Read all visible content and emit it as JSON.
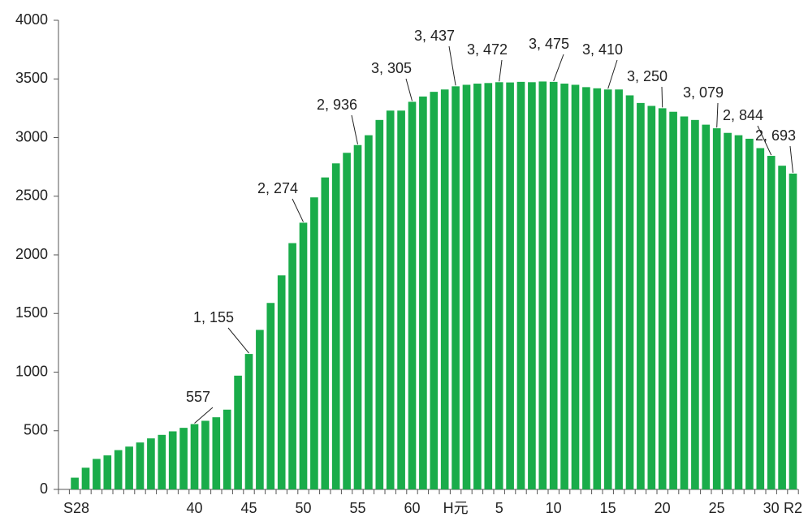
{
  "chart_data": {
    "type": "bar",
    "color": "#1aac4a",
    "categories": [
      "S28",
      null,
      null,
      null,
      null,
      null,
      null,
      null,
      null,
      null,
      null,
      null,
      "40",
      null,
      null,
      null,
      null,
      "45",
      null,
      null,
      null,
      null,
      "50",
      null,
      null,
      null,
      null,
      "55",
      null,
      null,
      null,
      null,
      "60",
      null,
      null,
      null,
      "H元",
      null,
      null,
      null,
      "5",
      null,
      null,
      null,
      null,
      "10",
      null,
      null,
      null,
      null,
      "15",
      null,
      null,
      null,
      null,
      "20",
      null,
      null,
      null,
      null,
      "25",
      null,
      null,
      null,
      null,
      "30",
      null,
      "R2"
    ],
    "values": [
      null,
      100,
      185,
      260,
      290,
      335,
      365,
      400,
      435,
      465,
      495,
      525,
      557,
      585,
      615,
      680,
      970,
      1155,
      1360,
      1590,
      1825,
      2100,
      2274,
      2490,
      2660,
      2780,
      2870,
      2936,
      3020,
      3150,
      3230,
      3230,
      3305,
      3350,
      3390,
      3410,
      3437,
      3450,
      3460,
      3465,
      3472,
      3470,
      3475,
      3472,
      3478,
      3475,
      3460,
      3450,
      3430,
      3420,
      3410,
      3410,
      3360,
      3295,
      3270,
      3250,
      3220,
      3180,
      3150,
      3110,
      3079,
      3040,
      3020,
      2990,
      2910,
      2844,
      2760,
      2693
    ],
    "value_labels": [
      null,
      null,
      null,
      null,
      null,
      null,
      null,
      null,
      null,
      null,
      null,
      null,
      "557",
      null,
      null,
      null,
      null,
      "1, 155",
      null,
      null,
      null,
      null,
      "2, 274",
      null,
      null,
      null,
      null,
      "2, 936",
      null,
      null,
      null,
      null,
      "3, 305",
      null,
      null,
      null,
      "3, 437",
      null,
      null,
      null,
      "3, 472",
      null,
      null,
      null,
      null,
      "3, 475",
      null,
      null,
      null,
      null,
      "3, 410",
      null,
      null,
      null,
      null,
      "3, 250",
      null,
      null,
      null,
      null,
      "3, 079",
      null,
      null,
      null,
      null,
      "2, 844",
      null,
      "2, 693"
    ],
    "ylim": [
      0,
      4000
    ],
    "yticks": [
      0,
      500,
      1000,
      1500,
      2000,
      2500,
      3000,
      3500,
      4000
    ]
  }
}
